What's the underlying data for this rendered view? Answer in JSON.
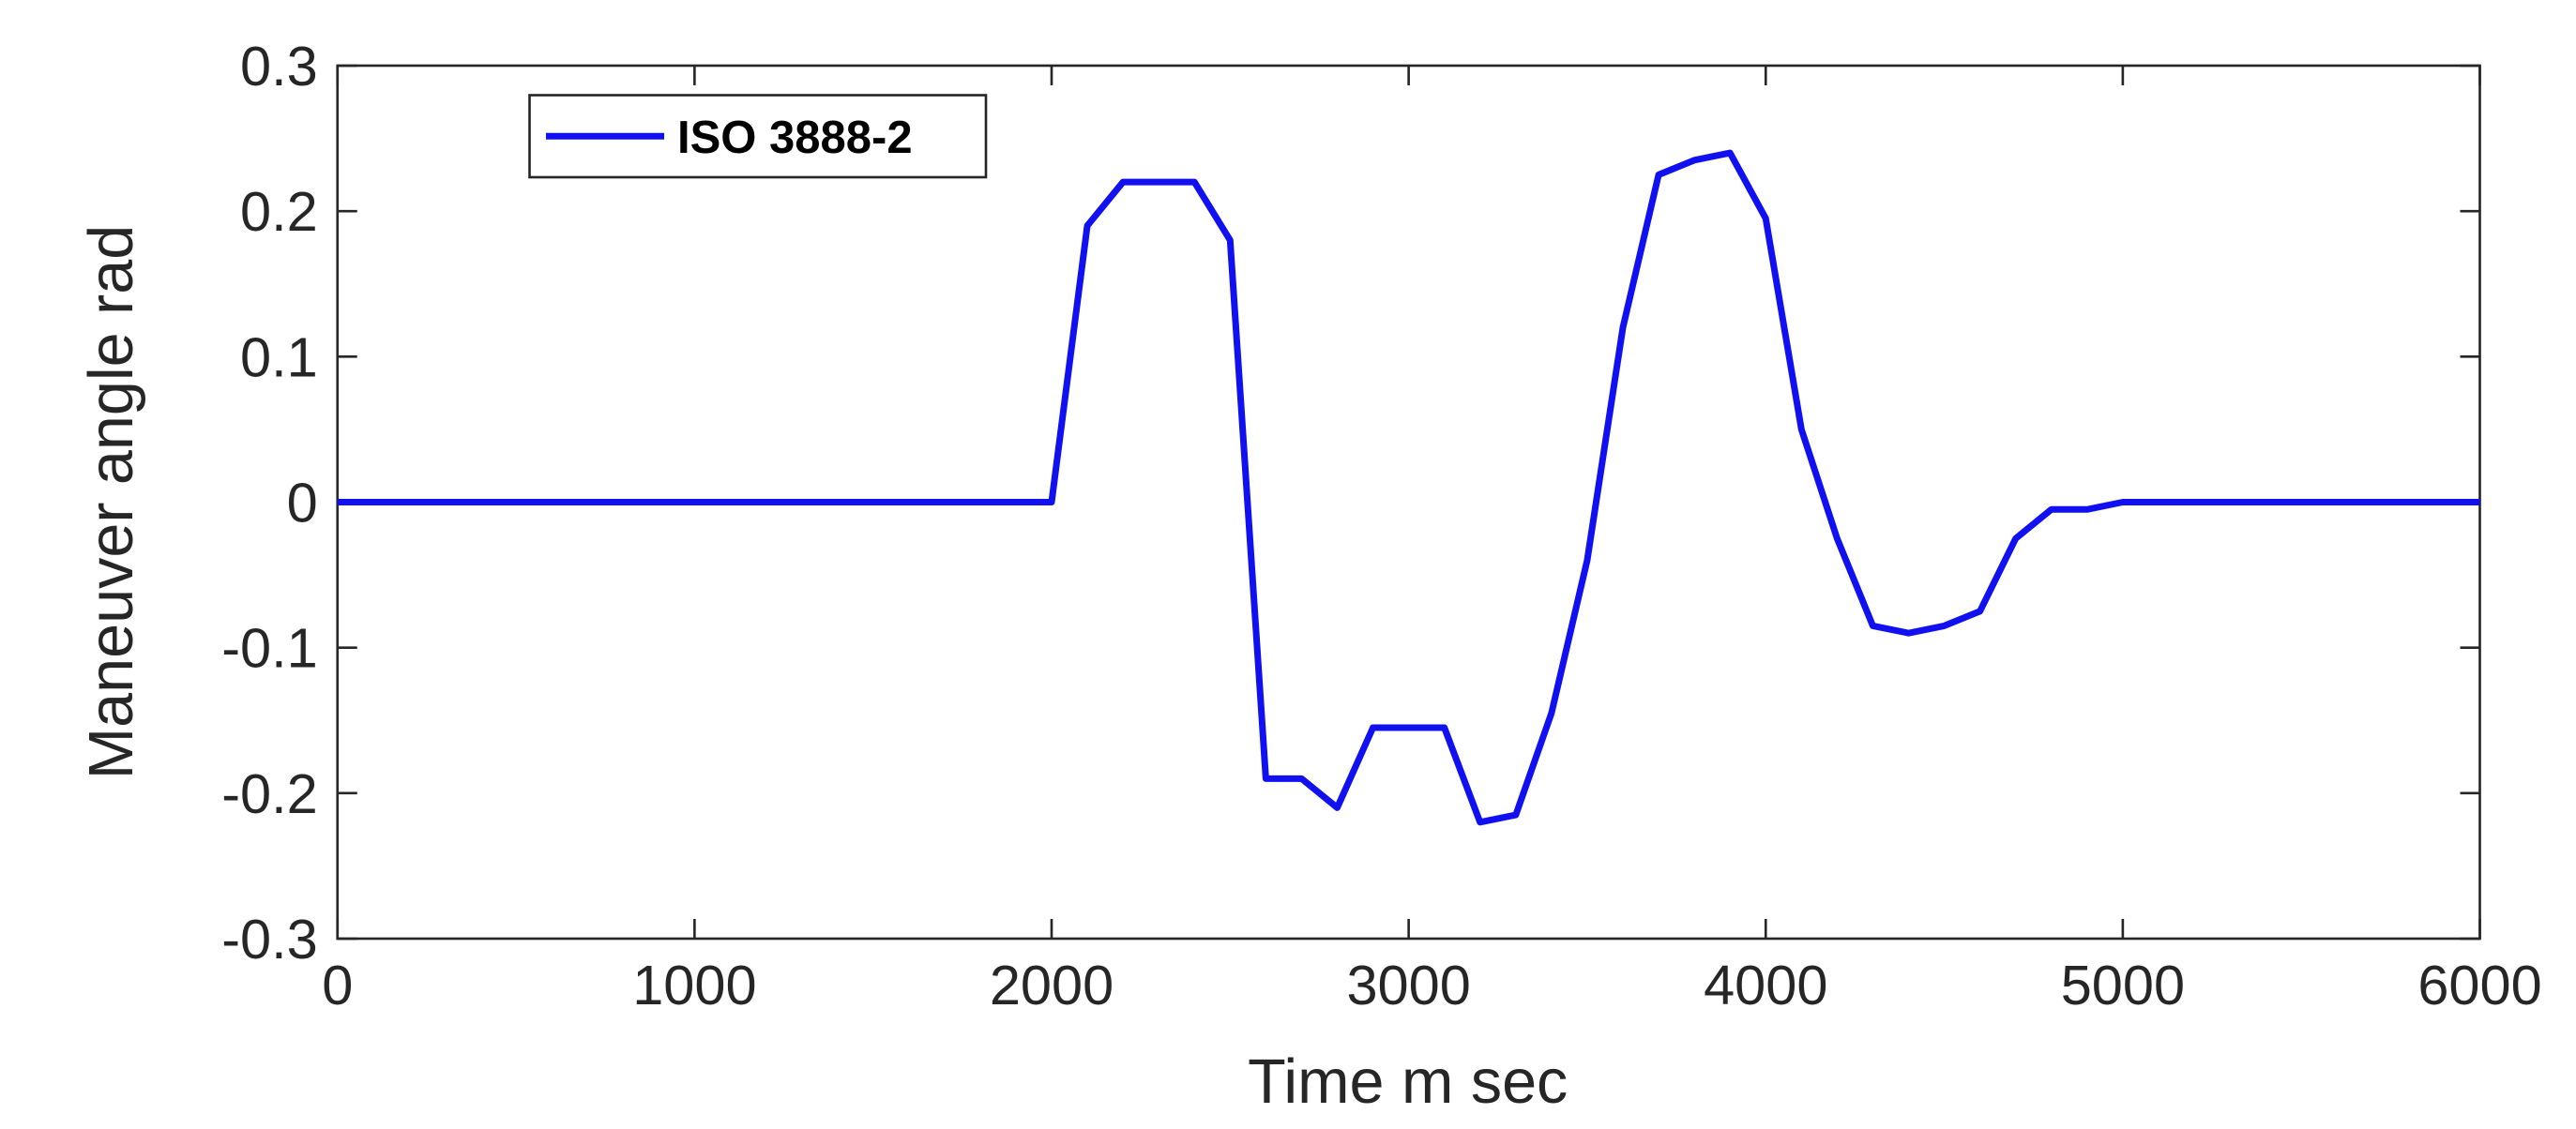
{
  "chart_data": {
    "type": "line",
    "xlabel": "Time m sec",
    "ylabel": "Maneuver angle rad",
    "x": [
      0,
      2000,
      2100,
      2200,
      2300,
      2400,
      2500,
      2600,
      2700,
      2800,
      2900,
      3000,
      3100,
      3200,
      3300,
      3400,
      3500,
      3600,
      3700,
      3800,
      3900,
      4000,
      4100,
      4200,
      4300,
      4400,
      4500,
      4600,
      4700,
      4800,
      4900,
      5000,
      6000
    ],
    "series": [
      {
        "name": "ISO 3888-2",
        "color": "#1010f0",
        "values": [
          0,
          0,
          0.19,
          0.22,
          0.22,
          0.22,
          0.18,
          -0.19,
          -0.19,
          -0.21,
          -0.155,
          -0.155,
          -0.155,
          -0.22,
          -0.215,
          -0.145,
          -0.04,
          0.12,
          0.225,
          0.235,
          0.24,
          0.195,
          0.05,
          -0.025,
          -0.085,
          -0.09,
          -0.085,
          -0.075,
          -0.025,
          -0.005,
          -0.005,
          0,
          0
        ]
      }
    ],
    "xlim": [
      0,
      6000
    ],
    "xticks": [
      0,
      1000,
      2000,
      3000,
      4000,
      5000,
      6000
    ],
    "ylim": [
      -0.3,
      0.3
    ],
    "yticks": [
      -0.3,
      -0.2,
      -0.1,
      0,
      0.1,
      0.2,
      0.3
    ],
    "legend": "upper left",
    "grid": false
  }
}
